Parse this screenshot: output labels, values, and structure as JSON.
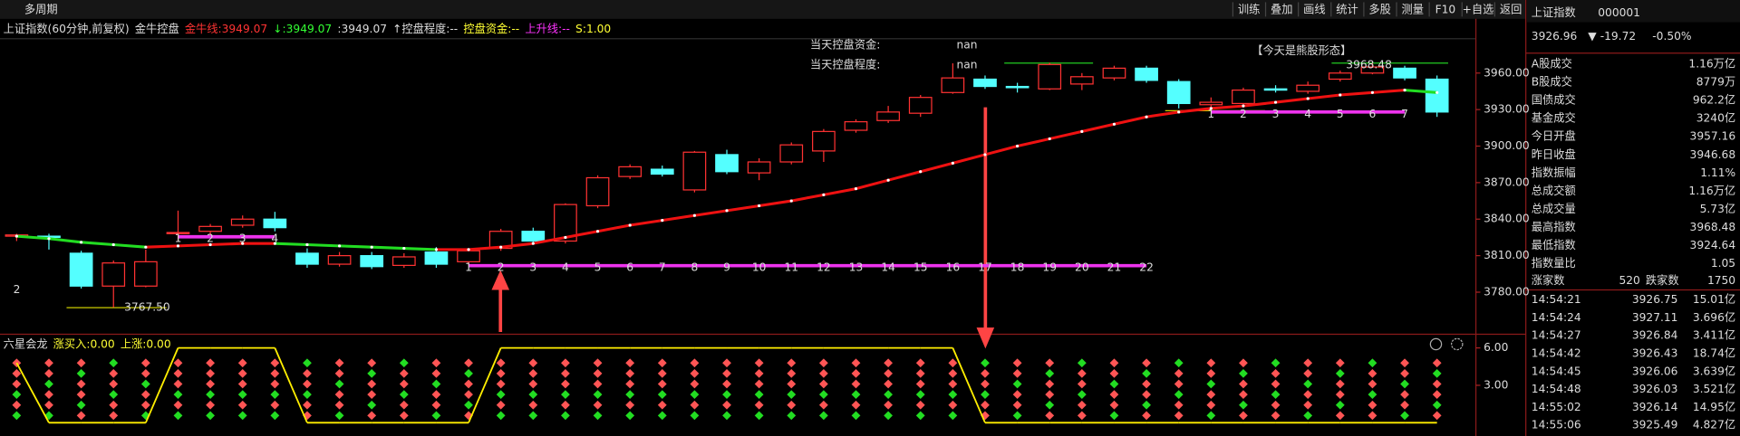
{
  "toolbar": {
    "left": "多周期",
    "buttons": [
      "训练",
      "叠加",
      "画线",
      "统计",
      "多股",
      "测量",
      "F10",
      "+自选",
      "返回"
    ]
  },
  "header": {
    "items": [
      {
        "text": "上证指数(60分钟,前复权)",
        "color": "#dddddd"
      },
      {
        "text": "金牛控盘",
        "color": "#dddddd"
      },
      {
        "text": "金牛线:3949.07",
        "color": "#ff3333"
      },
      {
        "text": "↓:3949.07",
        "color": "#33ff33"
      },
      {
        "text": ":3949.07",
        "color": "#dddddd"
      },
      {
        "text": "↑控盘程度:--",
        "color": "#dddddd"
      },
      {
        "text": "控盘资金:--",
        "color": "#ffff33"
      },
      {
        "text": "上升线:--",
        "color": "#ff33ff"
      },
      {
        "text": "S:1.00",
        "color": "#ffff33"
      }
    ]
  },
  "chart_data": {
    "type": "candlestick",
    "ylim": [
      3747.3,
      3988.2
    ],
    "yticks": [
      {
        "value": 3960,
        "label": "3960.00"
      },
      {
        "value": 3930,
        "label": "3930.00"
      },
      {
        "value": 3900,
        "label": "3900.00"
      },
      {
        "value": 3870,
        "label": "3870.00"
      },
      {
        "value": 3840,
        "label": "3840.00"
      },
      {
        "value": 3810,
        "label": "3810.00"
      },
      {
        "value": 3780,
        "label": "3780.00"
      }
    ],
    "up_color": "#ff3232",
    "down_color": "#54ffff",
    "candles": [
      {
        "o": 3826,
        "h": 3828,
        "l": 3822,
        "c": 3827
      },
      {
        "o": 3826,
        "h": 3828,
        "l": 3815,
        "c": 3825
      },
      {
        "o": 3812,
        "h": 3814,
        "l": 3783,
        "c": 3785
      },
      {
        "o": 3785,
        "h": 3806,
        "l": 3767.5,
        "c": 3804
      },
      {
        "o": 3785,
        "h": 3815,
        "l": 3784,
        "c": 3805
      },
      {
        "o": 3829,
        "h": 3847,
        "l": 3822,
        "c": 3829
      },
      {
        "o": 3830,
        "h": 3836,
        "l": 3826,
        "c": 3834
      },
      {
        "o": 3835,
        "h": 3843,
        "l": 3833,
        "c": 3840
      },
      {
        "o": 3840,
        "h": 3846,
        "l": 3830,
        "c": 3833
      },
      {
        "o": 3812,
        "h": 3816,
        "l": 3800,
        "c": 3803
      },
      {
        "o": 3803,
        "h": 3813,
        "l": 3801,
        "c": 3810
      },
      {
        "o": 3810,
        "h": 3813,
        "l": 3799,
        "c": 3801
      },
      {
        "o": 3802,
        "h": 3812,
        "l": 3800,
        "c": 3809
      },
      {
        "o": 3813,
        "h": 3817,
        "l": 3800,
        "c": 3803
      },
      {
        "o": 3805,
        "h": 3816,
        "l": 3802,
        "c": 3814
      },
      {
        "o": 3816,
        "h": 3832,
        "l": 3814,
        "c": 3830
      },
      {
        "o": 3830,
        "h": 3833,
        "l": 3820,
        "c": 3822
      },
      {
        "o": 3822,
        "h": 3853,
        "l": 3820,
        "c": 3852
      },
      {
        "o": 3851,
        "h": 3876,
        "l": 3849,
        "c": 3874
      },
      {
        "o": 3875,
        "h": 3885,
        "l": 3873,
        "c": 3883
      },
      {
        "o": 3881,
        "h": 3884,
        "l": 3875,
        "c": 3877
      },
      {
        "o": 3864,
        "h": 3896,
        "l": 3862,
        "c": 3895
      },
      {
        "o": 3893,
        "h": 3897,
        "l": 3877,
        "c": 3879
      },
      {
        "o": 3878,
        "h": 3890,
        "l": 3872,
        "c": 3887
      },
      {
        "o": 3887,
        "h": 3903,
        "l": 3885,
        "c": 3901
      },
      {
        "o": 3896,
        "h": 3914,
        "l": 3887,
        "c": 3912
      },
      {
        "o": 3913,
        "h": 3922,
        "l": 3911,
        "c": 3920
      },
      {
        "o": 3921,
        "h": 3933,
        "l": 3919,
        "c": 3928
      },
      {
        "o": 3927,
        "h": 3942,
        "l": 3924,
        "c": 3940
      },
      {
        "o": 3944,
        "h": 3968,
        "l": 3943,
        "c": 3956
      },
      {
        "o": 3955,
        "h": 3958,
        "l": 3947,
        "c": 3949
      },
      {
        "o": 3949,
        "h": 3952,
        "l": 3944,
        "c": 3948
      },
      {
        "o": 3947,
        "h": 3968.48,
        "l": 3946,
        "c": 3967
      },
      {
        "o": 3951,
        "h": 3960,
        "l": 3946,
        "c": 3957
      },
      {
        "o": 3956,
        "h": 3966,
        "l": 3954,
        "c": 3964
      },
      {
        "o": 3964,
        "h": 3966,
        "l": 3952,
        "c": 3954
      },
      {
        "o": 3953,
        "h": 3955,
        "l": 3931,
        "c": 3935
      },
      {
        "o": 3934,
        "h": 3940,
        "l": 3932,
        "c": 3936
      },
      {
        "o": 3935,
        "h": 3948,
        "l": 3932,
        "c": 3946
      },
      {
        "o": 3947,
        "h": 3950,
        "l": 3944,
        "c": 3946
      },
      {
        "o": 3945,
        "h": 3953,
        "l": 3943,
        "c": 3950
      },
      {
        "o": 3955,
        "h": 3962,
        "l": 3953,
        "c": 3960
      },
      {
        "o": 3960,
        "h": 3968.48,
        "l": 3959,
        "c": 3965
      },
      {
        "o": 3964,
        "h": 3966,
        "l": 3954,
        "c": 3956
      },
      {
        "o": 3955,
        "h": 3958,
        "l": 3924,
        "c": 3928
      }
    ],
    "ma": {
      "up_color": "#ee1111",
      "down_color": "#22dd22",
      "values": [
        3826,
        3824,
        3821,
        3819,
        3817,
        3818,
        3819,
        3820,
        3820,
        3819,
        3818,
        3817,
        3816,
        3815,
        3815,
        3817,
        3820,
        3825,
        3830,
        3835,
        3839,
        3843,
        3847,
        3851,
        3855,
        3860,
        3865,
        3872,
        3879,
        3886,
        3893,
        3900,
        3906,
        3912,
        3918,
        3924,
        3928,
        3931,
        3933,
        3936,
        3939,
        3942,
        3944,
        3946,
        3944
      ]
    },
    "count_lines": [
      {
        "level": 3825.5,
        "start": 5,
        "labels": [
          1,
          2,
          3,
          4
        ]
      },
      {
        "level": 3801.8,
        "start": 14,
        "labels": [
          1,
          2,
          3,
          4,
          5,
          6,
          7,
          8,
          9,
          10,
          11,
          12,
          13,
          14,
          15,
          16,
          17,
          18,
          19,
          20,
          21,
          22
        ]
      },
      {
        "level": 3928,
        "start": 37,
        "labels": [
          1,
          2,
          3,
          4,
          5,
          6,
          7
        ]
      }
    ],
    "annotations": {
      "low_label": "3767.50",
      "high_label": "3968.48",
      "left_count": "2",
      "capital_label": "当天控盘资金:",
      "capital_value": "nan",
      "degree_label": "当天控盘程度:",
      "degree_value": "nan",
      "pattern": "【今天是熊股形态】"
    }
  },
  "indicator": {
    "items": [
      {
        "text": "六星会龙",
        "color": "#dddddd"
      },
      {
        "text": "涨买入:0.00",
        "color": "#ffff33"
      },
      {
        "text": "上涨:0.00",
        "color": "#ffff33"
      }
    ],
    "ylim": [
      0,
      7.1
    ],
    "yticks": [
      {
        "value": 6,
        "label": "6.00"
      },
      {
        "value": 3,
        "label": "3.00"
      }
    ],
    "values": [
      4.8,
      0,
      0,
      0,
      0,
      6,
      6,
      6,
      6,
      0,
      0,
      0,
      0,
      0,
      0,
      6,
      6,
      6,
      6,
      6,
      6,
      6,
      6,
      6,
      6,
      6,
      6,
      6,
      6,
      6,
      0,
      0,
      0,
      0,
      0,
      0,
      0,
      0,
      0,
      0,
      0,
      0,
      0,
      0,
      0
    ]
  },
  "panel": {
    "name": "上证指数",
    "code": "000001",
    "price": "3926.96",
    "change": "-19.72",
    "pct": "-0.50%",
    "rows": [
      {
        "label": "A股成交",
        "value": "1.16万亿",
        "color": "#ffff33"
      },
      {
        "label": "B股成交",
        "value": "8779万",
        "color": "#dddddd"
      },
      {
        "label": "国债成交",
        "value": "962.2亿",
        "color": "#dddddd"
      },
      {
        "label": "基金成交",
        "value": "3240亿",
        "color": "#dddddd"
      },
      {
        "label": "今日开盘",
        "value": "3957.16",
        "color": "#ff3333"
      },
      {
        "label": "昨日收盘",
        "value": "3946.68",
        "color": "#dddddd"
      },
      {
        "label": "指数振幅",
        "value": "1.11%",
        "color": "#dddddd"
      },
      {
        "label": "总成交额",
        "value": "1.16万亿",
        "color": "#ffff33"
      },
      {
        "label": "总成交量",
        "value": "5.73亿",
        "color": "#ffff33"
      },
      {
        "label": "最高指数",
        "value": "3968.48",
        "color": "#ff3333"
      },
      {
        "label": "最低指数",
        "value": "3924.64",
        "color": "#33ff33"
      },
      {
        "label": "指数量比",
        "value": "1.05",
        "color": "#ff3333"
      }
    ],
    "breadth": {
      "up_label": "涨家数",
      "up": "520",
      "down_label": "跌家数",
      "down": "1750"
    },
    "ticks": [
      [
        "14:54:21",
        "3926.75",
        "15.01亿"
      ],
      [
        "14:54:24",
        "3927.11",
        "3.696亿"
      ],
      [
        "14:54:27",
        "3926.84",
        "3.411亿"
      ],
      [
        "14:54:42",
        "3926.43",
        "18.74亿"
      ],
      [
        "14:54:45",
        "3926.06",
        "3.639亿"
      ],
      [
        "14:54:48",
        "3926.03",
        "3.521亿"
      ],
      [
        "14:55:02",
        "3926.14",
        "14.95亿"
      ],
      [
        "14:55:06",
        "3925.49",
        "4.827亿"
      ]
    ]
  }
}
